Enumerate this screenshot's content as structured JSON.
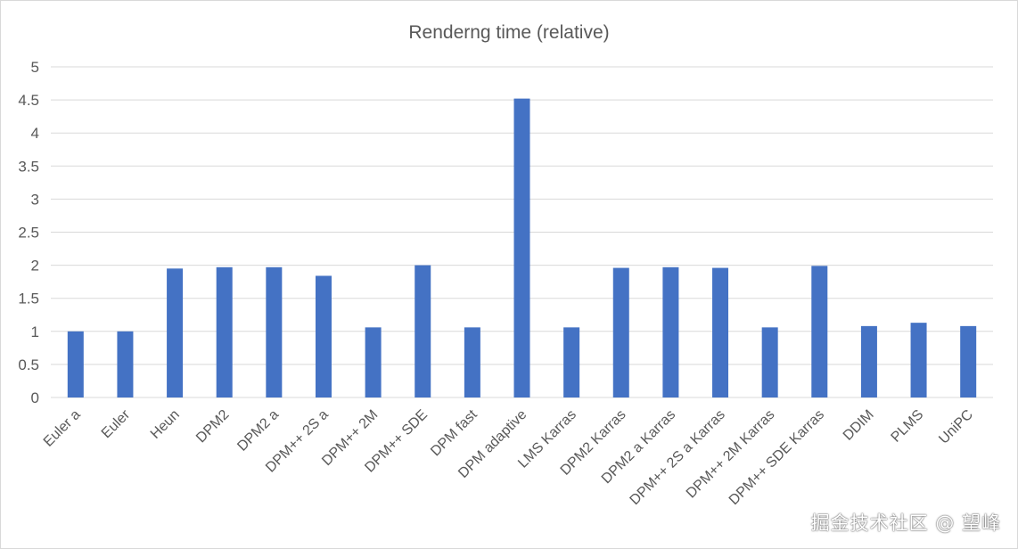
{
  "chart_data": {
    "type": "bar",
    "title": "Renderng time (relative)",
    "xlabel": "",
    "ylabel": "",
    "ylim": [
      0,
      5
    ],
    "yticks": [
      "0",
      "0.5",
      "1",
      "1.5",
      "2",
      "2.5",
      "3",
      "3.5",
      "4",
      "4.5",
      "5"
    ],
    "grid": true,
    "bar_color": "#4472c4",
    "categories": [
      "Euler a",
      "Euler",
      "Heun",
      "DPM2",
      "DPM2 a",
      "DPM++ 2S a",
      "DPM++ 2M",
      "DPM++ SDE",
      "DPM fast",
      "DPM adaptive",
      "LMS Karras",
      "DPM2 Karras",
      "DPM2 a Karras",
      "DPM++ 2S a Karras",
      "DPM++ 2M Karras",
      "DPM++ SDE Karras",
      "DDIM",
      "PLMS",
      "UniPC"
    ],
    "values": [
      1.0,
      1.0,
      1.95,
      1.97,
      1.97,
      1.84,
      1.06,
      2.0,
      1.06,
      4.52,
      1.06,
      1.96,
      1.97,
      1.96,
      1.06,
      1.99,
      1.08,
      1.13,
      1.08
    ]
  },
  "watermark": "掘金技术社区 @ 望峰"
}
